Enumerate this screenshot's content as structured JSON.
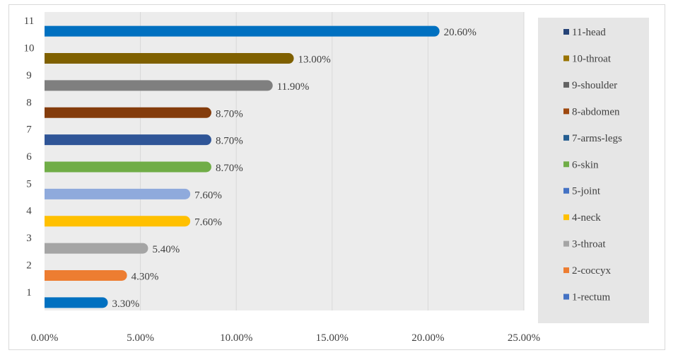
{
  "chart_data": {
    "type": "bar",
    "orientation": "horizontal",
    "categories": [
      "1",
      "2",
      "3",
      "4",
      "5",
      "6",
      "7",
      "8",
      "9",
      "10",
      "11"
    ],
    "values": [
      3.3,
      4.3,
      5.4,
      7.6,
      7.6,
      8.7,
      8.7,
      8.7,
      11.9,
      13.0,
      20.6
    ],
    "data_labels": [
      "3.30%",
      "4.30%",
      "5.40%",
      "7.60%",
      "7.60%",
      "8.70%",
      "8.70%",
      "8.70%",
      "11.90%",
      "13.00%",
      "20.60%"
    ],
    "legend": [
      "1-rectum",
      "2-coccyx",
      "3-throat",
      "4-neck",
      "5-joint",
      "6-skin",
      "7-arms-legs",
      "8-abdomen",
      "9-shoulder",
      "10-throat",
      "11-head"
    ],
    "colors": [
      "#0070c0",
      "#ed7d31",
      "#a5a5a5",
      "#ffc000",
      "#8faadc",
      "#70ad47",
      "#2f5597",
      "#843c0c",
      "#7f7f7f",
      "#7f6000",
      "#0070c0"
    ],
    "legend_colors": [
      "#4472c4",
      "#ed7d31",
      "#a5a5a5",
      "#ffc000",
      "#4472c4",
      "#70ad47",
      "#255e91",
      "#9e480e",
      "#636363",
      "#997300",
      "#264478"
    ],
    "xlim": [
      0,
      25
    ],
    "x_ticks": [
      "0.00%",
      "5.00%",
      "10.00%",
      "15.00%",
      "20.00%",
      "25.00%"
    ],
    "grid": true,
    "plot_background": "#ececec",
    "legend_placement": "right",
    "title": "",
    "xlabel": "",
    "ylabel": ""
  }
}
